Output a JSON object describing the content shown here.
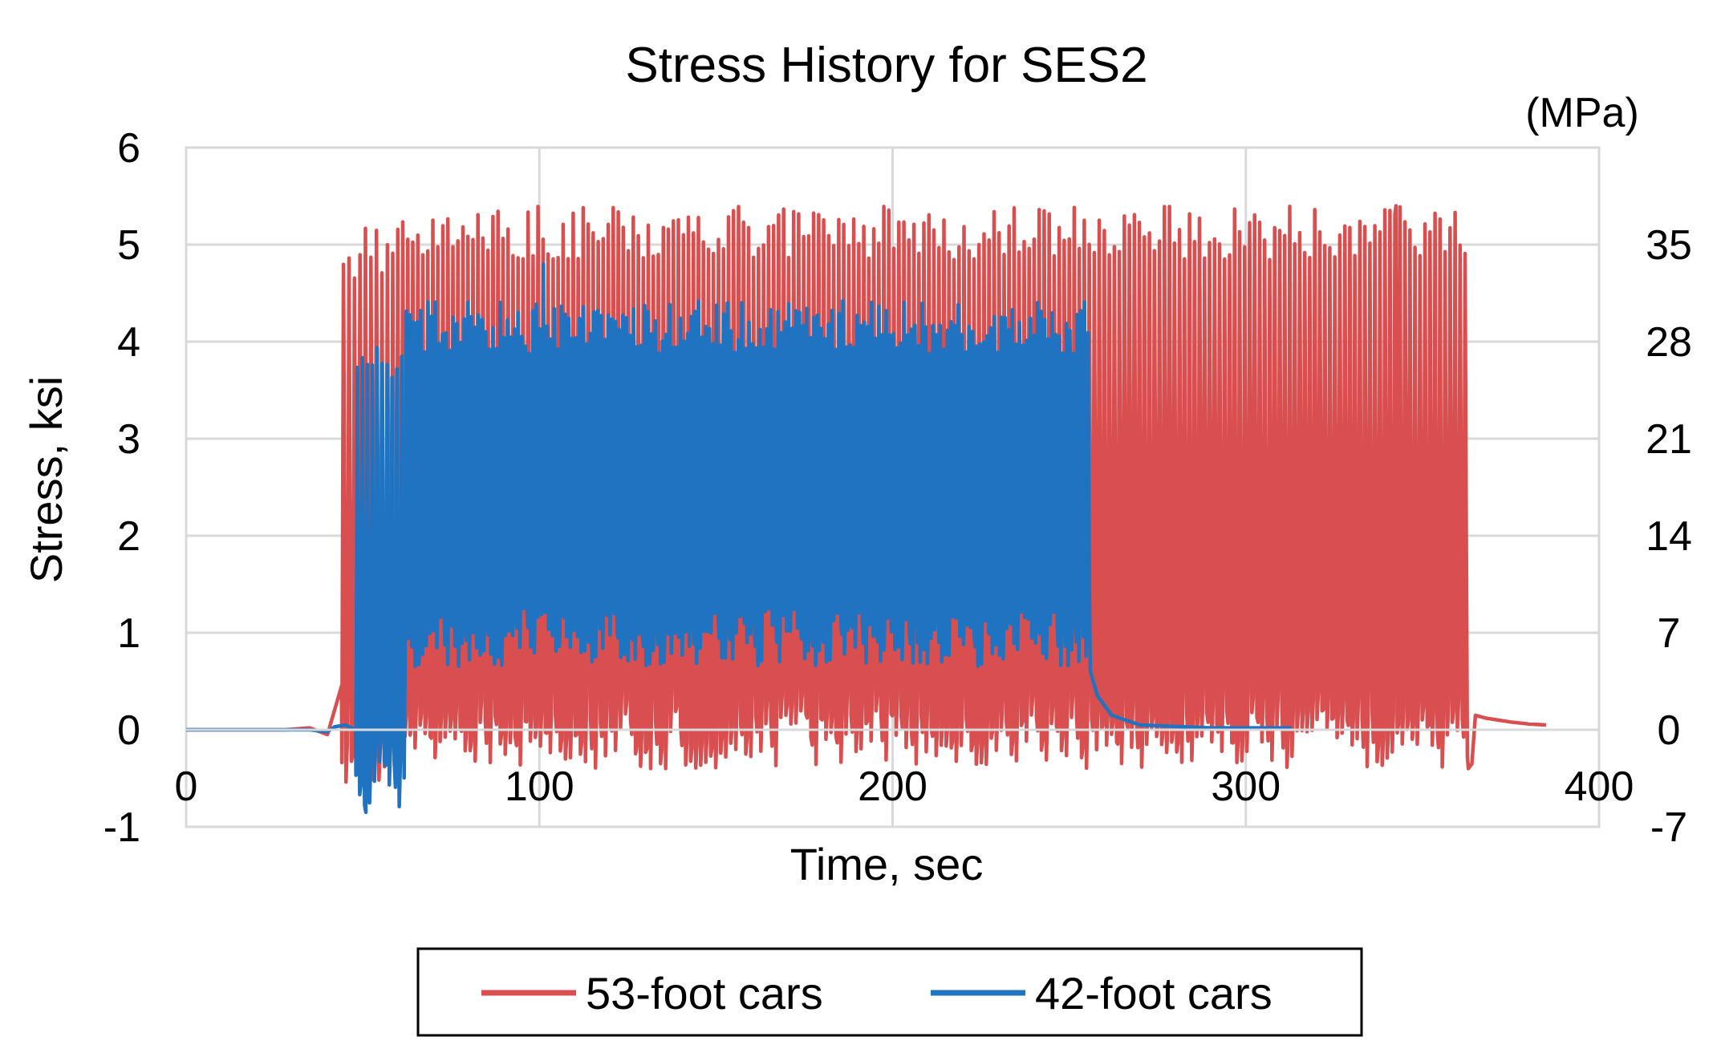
{
  "chart_data": {
    "type": "line",
    "title": "Stress History for SES2",
    "xlabel": "Time, sec",
    "ylabel": "Stress, ksi",
    "y2label": "(MPa)",
    "xlim": [
      0,
      400
    ],
    "ylim": [
      -1,
      6
    ],
    "y2lim": [
      -7,
      42
    ],
    "x_ticks": [
      0,
      100,
      200,
      300,
      400
    ],
    "x_tick_labels": [
      "0",
      "100",
      "200",
      "300",
      "400"
    ],
    "y_ticks": [
      -1,
      0,
      1,
      2,
      3,
      4,
      5,
      6
    ],
    "y_tick_labels": [
      "-1",
      "0",
      "1",
      "2",
      "3",
      "4",
      "5",
      "6"
    ],
    "y2_ticks": [
      -7,
      0,
      7,
      14,
      21,
      28,
      35
    ],
    "y2_tick_labels": [
      "-7",
      "0",
      "7",
      "14",
      "21",
      "28",
      "35"
    ],
    "grid": true,
    "legend_position": "bottom",
    "series": [
      {
        "name": "53-foot cars",
        "color": "#d94f4f",
        "segments": [
          {
            "x": [
              0,
              28,
              35,
              40,
              42,
              44
            ],
            "y": [
              0,
              0,
              0.02,
              -0.05,
              0.2,
              0.45
            ]
          },
          {
            "x_start": 44,
            "x_end": 58,
            "cycles": 9,
            "peak": 4.9,
            "trough": -0.3
          },
          {
            "x_start": 58,
            "x_end": 363,
            "cycles": 215,
            "peak": 5.12,
            "trough": -0.1
          },
          {
            "x": [
              363,
              364,
              365,
              368,
              375,
              380,
              385
            ],
            "y": [
              -0.4,
              -0.35,
              0.15,
              0.12,
              0.08,
              0.06,
              0.05
            ]
          }
        ],
        "key_points": {
          "max_peak": 5.4,
          "max_peak_time": 343,
          "end_time": 385
        }
      },
      {
        "name": "42-foot cars",
        "color": "#1f73c1",
        "segments": [
          {
            "x": [
              0,
              35,
              40,
              42,
              45,
              48
            ],
            "y": [
              0,
              0,
              -0.02,
              0.03,
              0.05,
              0.0
            ]
          },
          {
            "x_start": 48,
            "x_end": 62,
            "cycles": 10,
            "peak": 3.8,
            "trough": -0.6
          },
          {
            "x_start": 62,
            "x_end": 256,
            "cycles": 190,
            "peak": 4.15,
            "trough": 0.95
          },
          {
            "x": [
              256,
              258,
              262,
              270,
              290,
              313
            ],
            "y": [
              0.6,
              0.35,
              0.15,
              0.05,
              0.02,
              0.02
            ]
          }
        ],
        "key_points": {
          "max_peak": 4.8,
          "max_peak_time": 101,
          "min_trough": -0.85,
          "min_trough_time": 51,
          "end_time": 313
        }
      }
    ]
  }
}
